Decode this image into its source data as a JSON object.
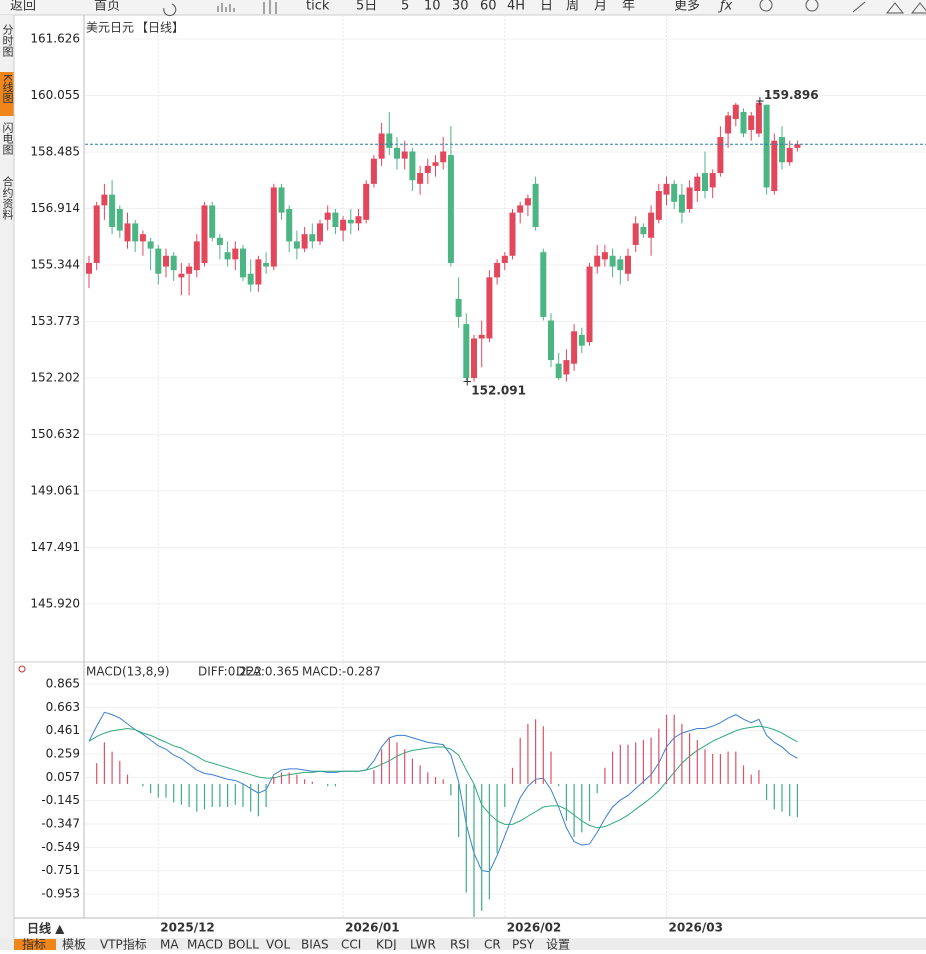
{
  "toolbar": [
    "返回",
    "首页",
    "tick",
    "5日",
    "5",
    "10",
    "30",
    "60",
    "4H",
    "日",
    "周",
    "月",
    "年",
    "更多"
  ],
  "sidebar": [
    "分时图",
    "K线图",
    "闪电图",
    "合约资料"
  ],
  "period_button": "日线 ▲",
  "tabs": [
    "指标",
    "模板",
    "VTP指标",
    "MA",
    "MACD",
    "BOLL",
    "VOL",
    "BIAS",
    "CCI",
    "KDJ",
    "LWR",
    "RSI",
    "CR",
    "PSY",
    "设置"
  ],
  "chart_data": [
    {
      "type": "candlestick",
      "title": "美元日元",
      "subtitle": "【日线】",
      "up_color": "#e2475c",
      "down_color": "#4cb584",
      "high_label": "159.896",
      "low_label": "152.091",
      "categories": [
        null,
        null,
        null,
        null,
        null,
        null,
        null,
        null,
        null,
        "2025/12",
        null,
        null,
        null,
        null,
        null,
        null,
        null,
        null,
        null,
        null,
        null,
        null,
        null,
        null,
        null,
        null,
        null,
        null,
        null,
        null,
        null,
        null,
        null,
        "2026/01",
        null,
        null,
        null,
        null,
        null,
        null,
        null,
        null,
        null,
        null,
        null,
        null,
        null,
        null,
        null,
        null,
        null,
        null,
        null,
        null,
        "2026/02",
        null,
        null,
        null,
        null,
        null,
        null,
        null,
        null,
        null,
        null,
        null,
        null,
        null,
        null,
        null,
        null,
        null,
        null,
        null,
        null,
        "2026/03",
        null,
        null,
        null,
        null,
        null,
        null,
        null,
        null,
        null,
        null,
        null,
        null,
        null,
        null,
        null,
        null,
        null
      ],
      "open": [
        155.1,
        155.4,
        157.0,
        157.3,
        156.9,
        156.0,
        156.5,
        156.0,
        156.0,
        155.8,
        155.3,
        155.6,
        155.0,
        155.1,
        155.2,
        155.4,
        157.0,
        156.1,
        155.7,
        155.5,
        155.8,
        155.1,
        154.8,
        155.4,
        155.3,
        157.5,
        156.9,
        156.0,
        155.8,
        156.2,
        156.0,
        156.6,
        156.8,
        156.3,
        156.6,
        156.5,
        156.6,
        157.6,
        158.3,
        159.0,
        158.6,
        158.3,
        158.5,
        157.6,
        157.9,
        158.1,
        158.2,
        158.4,
        154.4,
        153.7,
        152.2,
        153.3,
        153.3,
        155.0,
        155.4,
        155.6,
        156.8,
        157.0,
        157.6,
        155.7,
        153.8,
        152.6,
        152.3,
        152.6,
        153.4,
        153.2,
        155.3,
        155.5,
        155.6,
        155.5,
        155.1,
        155.9,
        156.4,
        156.1,
        156.6,
        157.3,
        157.6,
        157.3,
        156.9,
        157.4,
        157.9,
        157.5,
        157.9,
        159.0,
        159.4,
        159.6,
        159.1,
        159.0,
        159.8,
        157.4,
        158.9,
        158.2,
        158.6
      ],
      "high": [
        155.6,
        157.1,
        157.6,
        157.7,
        157.0,
        156.8,
        156.6,
        156.3,
        156.1,
        155.9,
        155.8,
        155.7,
        155.4,
        155.4,
        156.2,
        157.1,
        157.1,
        156.2,
        156.0,
        156.0,
        155.9,
        155.5,
        155.6,
        155.7,
        157.6,
        157.6,
        157.0,
        156.3,
        156.4,
        156.5,
        156.6,
        157.0,
        156.9,
        156.7,
        156.9,
        156.9,
        157.7,
        158.4,
        159.3,
        159.6,
        158.9,
        158.8,
        158.6,
        158.1,
        158.3,
        158.4,
        158.9,
        159.2,
        155.0,
        154.0,
        153.4,
        153.8,
        155.2,
        155.5,
        155.7,
        156.9,
        157.1,
        157.3,
        157.8,
        155.8,
        154.0,
        152.9,
        153.0,
        153.7,
        153.6,
        155.4,
        155.9,
        155.9,
        155.8,
        155.6,
        155.8,
        156.7,
        156.5,
        157.0,
        157.6,
        157.8,
        157.7,
        157.6,
        157.7,
        157.9,
        158.5,
        158.0,
        159.2,
        159.6,
        159.85,
        159.7,
        159.6,
        159.896,
        159.8,
        159.0,
        159.2,
        158.8,
        158.8
      ],
      "low": [
        154.7,
        155.2,
        156.6,
        156.2,
        156.1,
        155.8,
        155.7,
        155.6,
        155.2,
        154.8,
        155.0,
        154.9,
        154.5,
        154.5,
        155.0,
        155.3,
        156.0,
        155.5,
        155.3,
        155.2,
        154.9,
        154.6,
        154.6,
        155.1,
        155.2,
        156.6,
        155.7,
        155.5,
        155.7,
        155.8,
        155.9,
        156.3,
        156.2,
        156.0,
        156.2,
        156.3,
        156.5,
        157.5,
        158.1,
        158.4,
        158.0,
        158.0,
        157.4,
        157.3,
        157.6,
        157.8,
        158.0,
        155.3,
        153.6,
        152.091,
        152.1,
        152.5,
        153.2,
        154.8,
        155.2,
        155.5,
        156.5,
        156.7,
        156.3,
        153.8,
        152.5,
        152.15,
        152.1,
        152.4,
        152.9,
        153.1,
        155.1,
        155.3,
        155.0,
        154.8,
        154.9,
        155.7,
        156.1,
        155.6,
        156.5,
        157.0,
        156.9,
        156.5,
        156.8,
        157.1,
        157.2,
        157.2,
        157.8,
        158.6,
        159.2,
        158.9,
        158.8,
        158.9,
        157.3,
        157.3,
        158.0,
        158.1,
        158.5
      ],
      "close": [
        155.4,
        157.0,
        157.3,
        156.4,
        156.3,
        156.5,
        156.0,
        156.2,
        155.8,
        155.1,
        155.6,
        155.2,
        155.1,
        155.3,
        156.0,
        157.0,
        156.1,
        155.9,
        155.5,
        155.8,
        155.0,
        154.8,
        155.5,
        155.3,
        157.5,
        156.8,
        156.0,
        155.8,
        156.2,
        156.0,
        156.5,
        156.8,
        156.4,
        156.6,
        156.5,
        156.7,
        157.6,
        158.3,
        159.0,
        158.6,
        158.3,
        158.5,
        157.7,
        157.9,
        158.1,
        158.2,
        158.5,
        155.4,
        153.9,
        152.2,
        153.3,
        153.4,
        155.0,
        155.4,
        155.6,
        156.8,
        157.0,
        157.2,
        156.4,
        153.9,
        152.7,
        152.2,
        152.7,
        153.5,
        153.1,
        155.3,
        155.6,
        155.7,
        155.3,
        155.2,
        155.6,
        156.5,
        156.2,
        156.8,
        157.4,
        157.6,
        157.1,
        156.8,
        157.5,
        157.8,
        157.4,
        157.9,
        158.9,
        159.5,
        159.8,
        159.0,
        159.5,
        159.85,
        157.5,
        158.8,
        158.2,
        158.6,
        158.7
      ],
      "ylim": [
        144.36,
        162.1
      ],
      "yticks": [
        161.626,
        160.055,
        158.485,
        156.914,
        155.344,
        153.773,
        152.202,
        150.632,
        149.061,
        147.491,
        {
          "value": 145.92,
          "label": "145.920"
        }
      ],
      "grid": true
    },
    {
      "type": "macd",
      "title": "MACD(13,8,9)",
      "series": [
        {
          "name": "DIFF:0.222",
          "color": "#3a7fd5",
          "values": [
            0.37,
            0.5,
            0.62,
            0.6,
            0.57,
            0.52,
            0.47,
            0.43,
            0.38,
            0.33,
            0.3,
            0.25,
            0.22,
            0.17,
            0.12,
            0.09,
            0.08,
            0.06,
            0.04,
            0.03,
            0.0,
            -0.04,
            -0.08,
            -0.05,
            0.08,
            0.12,
            0.13,
            0.13,
            0.12,
            0.11,
            0.11,
            0.1,
            0.1,
            0.11,
            0.11,
            0.11,
            0.12,
            0.2,
            0.32,
            0.4,
            0.42,
            0.42,
            0.4,
            0.38,
            0.36,
            0.35,
            0.34,
            0.25,
            0.02,
            -0.35,
            -0.6,
            -0.75,
            -0.76,
            -0.62,
            -0.45,
            -0.28,
            -0.12,
            -0.02,
            0.04,
            0.05,
            -0.05,
            -0.2,
            -0.38,
            -0.5,
            -0.53,
            -0.52,
            -0.42,
            -0.3,
            -0.2,
            -0.14,
            -0.1,
            -0.04,
            0.02,
            0.08,
            0.18,
            0.32,
            0.4,
            0.44,
            0.46,
            0.48,
            0.48,
            0.5,
            0.53,
            0.57,
            0.6,
            0.56,
            0.53,
            0.56,
            0.42,
            0.36,
            0.32,
            0.26,
            0.222
          ]
        },
        {
          "name": "DEA:0.365",
          "color": "#2eaa7a",
          "values": [
            0.37,
            0.41,
            0.44,
            0.46,
            0.47,
            0.48,
            0.47,
            0.44,
            0.42,
            0.39,
            0.36,
            0.33,
            0.31,
            0.27,
            0.24,
            0.2,
            0.18,
            0.16,
            0.14,
            0.12,
            0.1,
            0.08,
            0.06,
            0.05,
            0.05,
            0.07,
            0.08,
            0.09,
            0.1,
            0.1,
            0.11,
            0.11,
            0.11,
            0.11,
            0.11,
            0.11,
            0.12,
            0.14,
            0.17,
            0.2,
            0.24,
            0.27,
            0.29,
            0.3,
            0.31,
            0.32,
            0.32,
            0.3,
            0.25,
            0.12,
            0.0,
            -0.18,
            -0.26,
            -0.32,
            -0.35,
            -0.35,
            -0.32,
            -0.28,
            -0.24,
            -0.2,
            -0.19,
            -0.19,
            -0.22,
            -0.27,
            -0.32,
            -0.36,
            -0.38,
            -0.37,
            -0.34,
            -0.31,
            -0.27,
            -0.22,
            -0.17,
            -0.12,
            -0.06,
            0.02,
            0.1,
            0.18,
            0.24,
            0.29,
            0.33,
            0.37,
            0.4,
            0.43,
            0.46,
            0.48,
            0.49,
            0.5,
            0.49,
            0.47,
            0.44,
            0.4,
            0.365
          ]
        },
        {
          "name": "MACD:-0.287",
          "color": "#4aa8c8",
          "up_color": "#d9536a",
          "down_color": "#3fae86",
          "values": [
            0,
            0.18,
            0.36,
            0.28,
            0.2,
            0.08,
            0,
            -0.02,
            -0.08,
            -0.12,
            -0.12,
            -0.16,
            -0.18,
            -0.2,
            -0.24,
            -0.22,
            -0.2,
            -0.2,
            -0.2,
            -0.18,
            -0.2,
            -0.24,
            -0.28,
            -0.2,
            0.06,
            0.1,
            0.1,
            0.08,
            0.04,
            0.02,
            0,
            -0.02,
            -0.02,
            0,
            0,
            0,
            0,
            0.12,
            0.3,
            0.4,
            0.36,
            0.3,
            0.22,
            0.16,
            0.1,
            0.06,
            0.04,
            -0.1,
            -0.46,
            -0.94,
            -1.15,
            -1.1,
            -1.0,
            -0.6,
            -0.2,
            0.14,
            0.4,
            0.52,
            0.56,
            0.5,
            0.28,
            -0.02,
            -0.32,
            -0.46,
            -0.42,
            -0.32,
            -0.08,
            0.14,
            0.28,
            0.34,
            0.34,
            0.36,
            0.38,
            0.4,
            0.48,
            0.6,
            0.6,
            0.52,
            0.44,
            0.38,
            0.3,
            0.26,
            0.26,
            0.28,
            0.28,
            0.16,
            0.08,
            0.12,
            -0.14,
            -0.22,
            -0.24,
            -0.28,
            -0.287
          ]
        }
      ],
      "ylim": [
        -1.161,
        0.943
      ],
      "yticks": [
        0.865,
        0.663,
        0.461,
        0.259,
        0.057,
        -0.145,
        -0.347,
        -0.549,
        -0.751,
        -0.953
      ],
      "grid": true
    }
  ]
}
